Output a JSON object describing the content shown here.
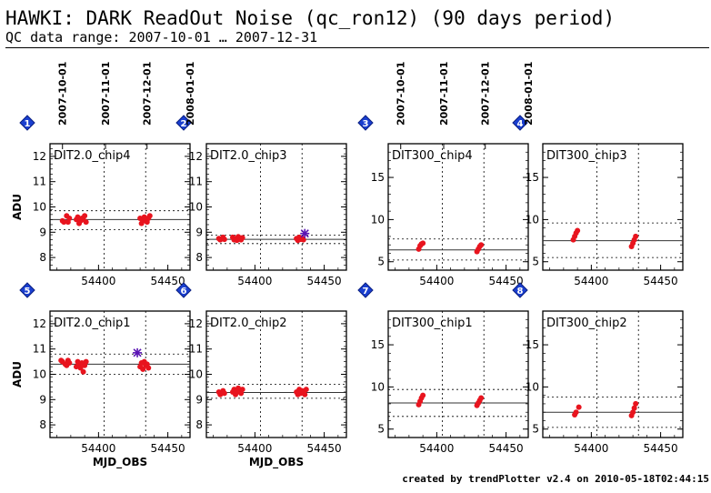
{
  "header": {
    "title": "HAWKI: DARK ReadOut Noise (qc_ron12) (90 days period)",
    "subtitle": "QC data range: 2007-10-01 … 2007-12-31"
  },
  "footer": {
    "text": "created by trendPlotter v2.4 on 2010-05-18T02:44:15"
  },
  "top_date_ticks": [
    "2007-10-01",
    "2007-11-01",
    "2007-12-01",
    "2008-01-01"
  ],
  "colors": {
    "points": "#e8141e",
    "outlier": "#5a14b4",
    "badge": "#1a3fd0",
    "axis": "#000000"
  },
  "chart_data": [
    {
      "type": "scatter",
      "badge": "1",
      "label": "DIT2.0_chip4",
      "xlabel": "",
      "ylabel": "ADU",
      "xlim": [
        54365,
        54466
      ],
      "xticks": [
        54400,
        54450
      ],
      "vlines": [
        54404,
        54434
      ],
      "ylim": [
        7.5,
        12.5
      ],
      "yticks": [
        8,
        9,
        10,
        11,
        12
      ],
      "mean": 9.5,
      "band": [
        9.1,
        9.85
      ],
      "points": [
        [
          54374,
          9.45
        ],
        [
          54375,
          9.4
        ],
        [
          54377,
          9.65
        ],
        [
          54378,
          9.4
        ],
        [
          54379,
          9.55
        ],
        [
          54384,
          9.5
        ],
        [
          54385,
          9.6
        ],
        [
          54386,
          9.35
        ],
        [
          54387,
          9.45
        ],
        [
          54388,
          9.55
        ],
        [
          54389,
          9.5
        ],
        [
          54390,
          9.65
        ],
        [
          54391,
          9.4
        ],
        [
          54430,
          9.55
        ],
        [
          54431,
          9.35
        ],
        [
          54432,
          9.45
        ],
        [
          54433,
          9.6
        ],
        [
          54434,
          9.5
        ],
        [
          54435,
          9.4
        ],
        [
          54436,
          9.55
        ],
        [
          54437,
          9.65
        ]
      ],
      "outliers": []
    },
    {
      "type": "scatter",
      "badge": "2",
      "label": "DIT2.0_chip3",
      "xlabel": "",
      "ylabel": "",
      "xlim": [
        54365,
        54466
      ],
      "xticks": [
        54400,
        54450
      ],
      "vlines": [
        54404,
        54434
      ],
      "ylim": [
        7.5,
        12.5
      ],
      "yticks": [
        8,
        9,
        10,
        11,
        12
      ],
      "mean": 8.72,
      "band": [
        8.55,
        8.88
      ],
      "points": [
        [
          54374,
          8.75
        ],
        [
          54375,
          8.7
        ],
        [
          54377,
          8.8
        ],
        [
          54378,
          8.72
        ],
        [
          54384,
          8.8
        ],
        [
          54385,
          8.7
        ],
        [
          54386,
          8.75
        ],
        [
          54387,
          8.68
        ],
        [
          54388,
          8.82
        ],
        [
          54389,
          8.74
        ],
        [
          54390,
          8.7
        ],
        [
          54391,
          8.78
        ],
        [
          54430,
          8.75
        ],
        [
          54431,
          8.68
        ],
        [
          54432,
          8.8
        ],
        [
          54433,
          8.72
        ],
        [
          54434,
          8.76
        ],
        [
          54435,
          8.7
        ]
      ],
      "outliers": [
        [
          54436,
          8.95
        ]
      ]
    },
    {
      "type": "scatter",
      "badge": "3",
      "label": "DIT300_chip4",
      "xlabel": "",
      "ylabel": "",
      "xlim": [
        54365,
        54466
      ],
      "xticks": [
        54400,
        54450
      ],
      "vlines": [
        54404,
        54434
      ],
      "ylim": [
        4,
        19
      ],
      "yticks": [
        5,
        10,
        15
      ],
      "mean": 6.4,
      "band": [
        5.2,
        7.7
      ],
      "points": [
        [
          54387,
          6.5
        ],
        [
          54388,
          6.9
        ],
        [
          54389,
          7.1
        ],
        [
          54390,
          7.2
        ],
        [
          54429,
          6.2
        ],
        [
          54430,
          6.5
        ],
        [
          54431,
          6.8
        ],
        [
          54432,
          7.0
        ]
      ],
      "outliers": []
    },
    {
      "type": "scatter",
      "badge": "4",
      "label": "DIT300_chip3",
      "xlabel": "",
      "ylabel": "",
      "xlim": [
        54365,
        54466
      ],
      "xticks": [
        54400,
        54450
      ],
      "vlines": [
        54404,
        54434
      ],
      "ylim": [
        4,
        19
      ],
      "yticks": [
        5,
        10,
        15
      ],
      "mean": 7.5,
      "band": [
        5.5,
        9.6
      ],
      "points": [
        [
          54387,
          7.6
        ],
        [
          54388,
          8.0
        ],
        [
          54389,
          8.4
        ],
        [
          54390,
          8.7
        ],
        [
          54429,
          6.8
        ],
        [
          54430,
          7.2
        ],
        [
          54431,
          7.6
        ],
        [
          54432,
          8.0
        ]
      ],
      "outliers": []
    },
    {
      "type": "scatter",
      "badge": "5",
      "label": "DIT2.0_chip1",
      "xlabel": "MJD_OBS",
      "ylabel": "ADU",
      "xlim": [
        54365,
        54466
      ],
      "xticks": [
        54400,
        54450
      ],
      "vlines": [
        54404,
        54434
      ],
      "ylim": [
        7.5,
        12.5
      ],
      "yticks": [
        8,
        9,
        10,
        11,
        12
      ],
      "mean": 10.4,
      "band": [
        10.0,
        10.8
      ],
      "points": [
        [
          54373,
          10.55
        ],
        [
          54374,
          10.5
        ],
        [
          54376,
          10.4
        ],
        [
          54377,
          10.35
        ],
        [
          54378,
          10.55
        ],
        [
          54379,
          10.45
        ],
        [
          54384,
          10.3
        ],
        [
          54385,
          10.5
        ],
        [
          54386,
          10.4
        ],
        [
          54387,
          10.25
        ],
        [
          54388,
          10.45
        ],
        [
          54389,
          10.1
        ],
        [
          54390,
          10.35
        ],
        [
          54391,
          10.5
        ],
        [
          54430,
          10.3
        ],
        [
          54431,
          10.45
        ],
        [
          54432,
          10.2
        ],
        [
          54433,
          10.5
        ],
        [
          54434,
          10.35
        ],
        [
          54435,
          10.4
        ],
        [
          54436,
          10.25
        ]
      ],
      "outliers": [
        [
          54428,
          10.85
        ]
      ]
    },
    {
      "type": "scatter",
      "badge": "6",
      "label": "DIT2.0_chip2",
      "xlabel": "MJD_OBS",
      "ylabel": "",
      "xlim": [
        54365,
        54466
      ],
      "xticks": [
        54400,
        54450
      ],
      "vlines": [
        54404,
        54434
      ],
      "ylim": [
        7.5,
        12.5
      ],
      "yticks": [
        8,
        9,
        10,
        11,
        12
      ],
      "mean": 9.28,
      "band": [
        9.05,
        9.6
      ],
      "points": [
        [
          54374,
          9.3
        ],
        [
          54375,
          9.2
        ],
        [
          54377,
          9.35
        ],
        [
          54378,
          9.25
        ],
        [
          54384,
          9.3
        ],
        [
          54385,
          9.4
        ],
        [
          54386,
          9.2
        ],
        [
          54387,
          9.35
        ],
        [
          54388,
          9.45
        ],
        [
          54389,
          9.3
        ],
        [
          54390,
          9.25
        ],
        [
          54391,
          9.4
        ],
        [
          54430,
          9.3
        ],
        [
          54431,
          9.2
        ],
        [
          54432,
          9.4
        ],
        [
          54433,
          9.25
        ],
        [
          54434,
          9.35
        ],
        [
          54435,
          9.3
        ],
        [
          54436,
          9.2
        ],
        [
          54437,
          9.4
        ]
      ],
      "outliers": []
    },
    {
      "type": "scatter",
      "badge": "7",
      "label": "DIT300_chip1",
      "xlabel": "",
      "ylabel": "",
      "xlim": [
        54365,
        54466
      ],
      "xticks": [
        54400,
        54450
      ],
      "vlines": [
        54404,
        54434
      ],
      "ylim": [
        4,
        19
      ],
      "yticks": [
        5,
        10,
        15
      ],
      "mean": 8.1,
      "band": [
        6.5,
        9.7
      ],
      "points": [
        [
          54387,
          7.9
        ],
        [
          54388,
          8.3
        ],
        [
          54389,
          8.7
        ],
        [
          54390,
          9.0
        ],
        [
          54429,
          7.8
        ],
        [
          54430,
          8.1
        ],
        [
          54431,
          8.4
        ],
        [
          54432,
          8.7
        ]
      ],
      "outliers": []
    },
    {
      "type": "scatter",
      "badge": "8",
      "label": "DIT300_chip2",
      "xlabel": "",
      "ylabel": "",
      "xlim": [
        54365,
        54466
      ],
      "xticks": [
        54400,
        54450
      ],
      "vlines": [
        54404,
        54434
      ],
      "ylim": [
        4,
        19
      ],
      "yticks": [
        5,
        10,
        15
      ],
      "mean": 7.0,
      "band": [
        5.2,
        8.8
      ],
      "points": [
        [
          54388,
          6.7
        ],
        [
          54389,
          7.0
        ],
        [
          54391,
          7.6
        ],
        [
          54429,
          6.6
        ],
        [
          54430,
          7.0
        ],
        [
          54431,
          7.5
        ],
        [
          54432,
          8.0
        ]
      ],
      "outliers": []
    }
  ]
}
